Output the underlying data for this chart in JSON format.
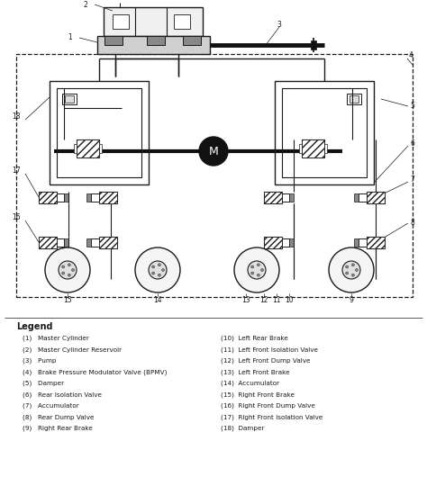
{
  "bg_color": "#ffffff",
  "line_color": "#1a1a1a",
  "legend_title": "Legend",
  "legend_items_left": [
    "(1)   Master Cylinder",
    "(2)   Master Cylinder Reservoir",
    "(3)   Pump",
    "(4)   Brake Pressure Modulator Valve (BPMV)",
    "(5)   Damper",
    "(6)   Rear Isolation Valve",
    "(7)   Accumulator",
    "(8)   Rear Dump Valve",
    "(9)   Right Rear Brake"
  ],
  "legend_items_right": [
    "(10)  Left Rear Brake",
    "(11)  Left Front Isolation Valve",
    "(12)  Left Front Dump Valve",
    "(13)  Left Front Brake",
    "(14)  Accumulator",
    "(15)  Right Front Brake",
    "(16)  Right Front Dump Valve",
    "(17)  Right Front Isolation Valve",
    "(18)  Damper"
  ]
}
